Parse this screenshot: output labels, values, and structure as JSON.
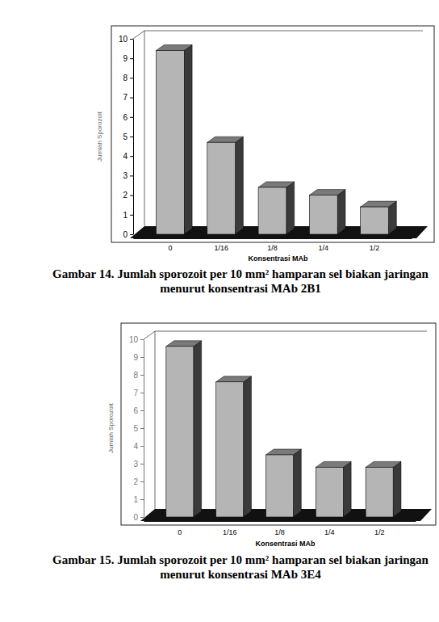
{
  "chart_data": [
    {
      "type": "bar",
      "title": "Gambar 14. Jumlah sporozoit per 10 mm² hamparan sel biakan jaringan menurut konsentrasi MAb 2B1",
      "x_label": "Konsentrasi MAb",
      "y_label": "Jumlah Sporozoit",
      "categories": [
        "0",
        "1/16",
        "1/8",
        "1/4",
        "1/2"
      ],
      "values": [
        9.4,
        4.7,
        2.4,
        2.0,
        1.4
      ],
      "color": "#b5b5b5",
      "ylim": [
        0,
        10
      ],
      "yticks": [
        0,
        1,
        2,
        3,
        4,
        5,
        6,
        7,
        8,
        9,
        10
      ],
      "grid": false
    },
    {
      "type": "bar",
      "title": "Gambar 15. Jumlah sporozoit per 10 mm² hamparan sel biakan jaringan menurut konsentrasi MAb 3E4",
      "x_label": "Konsentrasi MAb",
      "y_label": "Jumlah Sporozoit",
      "categories": [
        "0",
        "1/16",
        "1/8",
        "1/4",
        "1/2"
      ],
      "values": [
        9.6,
        7.6,
        3.5,
        2.8,
        2.8
      ],
      "color": "#b5b5b5",
      "ylim": [
        0,
        10
      ],
      "yticks": [
        0,
        1,
        2,
        3,
        4,
        5,
        6,
        7,
        8,
        9,
        10
      ],
      "grid": false
    }
  ]
}
